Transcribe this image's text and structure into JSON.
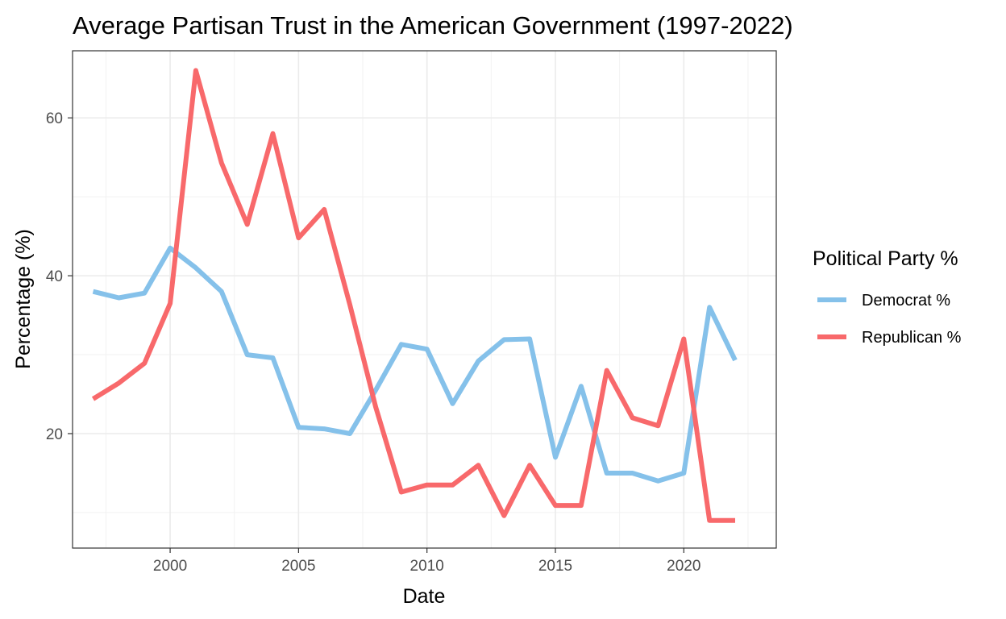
{
  "chart_data": {
    "type": "line",
    "title": "Average Partisan Trust in the American Government (1997-2022)",
    "xlabel": "Date",
    "ylabel": "Percentage (%)",
    "xlim": [
      1996.2,
      2023.6
    ],
    "ylim": [
      5.5,
      68.5
    ],
    "x_ticks": [
      2000,
      2005,
      2010,
      2015,
      2020
    ],
    "x_tick_labels": [
      "2000",
      "2005",
      "2010",
      "2015",
      "2020"
    ],
    "y_ticks": [
      20,
      40,
      60
    ],
    "y_tick_labels": [
      "20",
      "40",
      "60"
    ],
    "grid": true,
    "legend": {
      "title": "Political Party %",
      "placement": "right"
    },
    "x": [
      1997,
      1998,
      1999,
      2000,
      2001,
      2002,
      2003,
      2004,
      2005,
      2006,
      2007,
      2008,
      2009,
      2010,
      2011,
      2012,
      2013,
      2014,
      2015,
      2016,
      2017,
      2018,
      2019,
      2020,
      2021,
      2022
    ],
    "series": [
      {
        "name": "Democrat %",
        "color": "#85c1ea",
        "values": [
          38,
          37.2,
          37.8,
          43.5,
          41,
          38,
          30,
          29.6,
          20.8,
          20.6,
          20,
          25.5,
          31.3,
          30.7,
          23.8,
          29.2,
          31.9,
          32,
          17,
          26,
          15,
          15,
          14,
          15,
          36,
          29.3
        ]
      },
      {
        "name": "Republican %",
        "color": "#f8696b",
        "values": [
          24.4,
          26.4,
          28.9,
          36.5,
          66,
          54.3,
          46.5,
          58,
          44.8,
          48.4,
          36.3,
          23.4,
          12.6,
          13.5,
          13.5,
          16,
          9.6,
          16,
          10.9,
          10.9,
          28,
          22,
          21,
          32,
          9,
          9
        ]
      }
    ]
  }
}
